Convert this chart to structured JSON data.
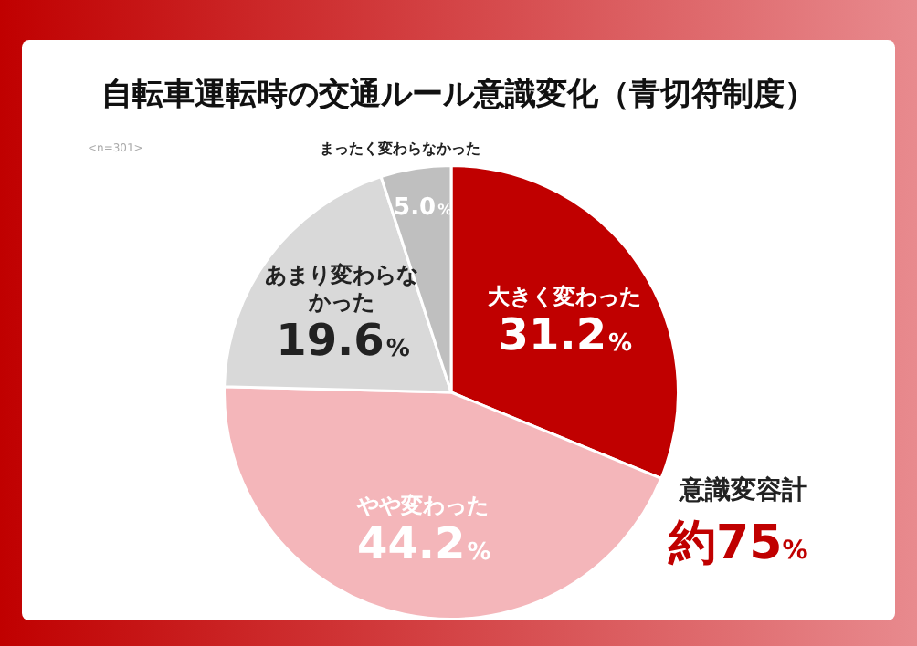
{
  "chart_data": {
    "type": "pie",
    "title": "自転車運転時の交通ルール意識変化（青切符制度）",
    "categories": [
      "大きく変わった",
      "やや変わった",
      "あまり変わらなかった",
      "まったく変わらなかった"
    ],
    "values": [
      31.2,
      44.2,
      19.6,
      5.0
    ],
    "value_labels": [
      "31.2%",
      "44.2%",
      "19.6%",
      "5.0%"
    ],
    "colors": [
      "#c00000",
      "#f4b6ba",
      "#d9d9d9",
      "#bfbfbf"
    ],
    "annotations": [
      "<n=301>",
      "意識変容計",
      "約75%"
    ],
    "legend": false
  }
}
